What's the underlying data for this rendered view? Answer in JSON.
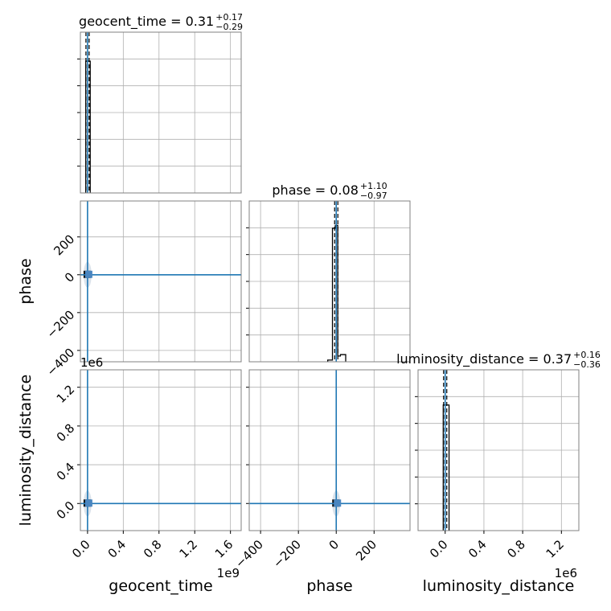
{
  "chart_data": {
    "type": "corner",
    "parameters": [
      "geocent_time",
      "phase",
      "luminosity_distance"
    ],
    "titles": {
      "geocent_time": {
        "name": "geocent_time",
        "median": "0.31",
        "plus": "+0.17",
        "minus": "−0.29"
      },
      "phase": {
        "name": "phase",
        "median": "0.08",
        "plus": "+1.10",
        "minus": "−0.97"
      },
      "luminosity_distance": {
        "name": "luminosity_distance",
        "median": "0.37",
        "plus": "+0.16",
        "minus": "−0.36"
      }
    },
    "axes": {
      "geocent_time": {
        "label": "geocent_time",
        "range": [
          -80000000.0,
          1720000000.0
        ],
        "ticks": [
          0,
          400000000.0,
          800000000.0,
          1200000000.0,
          1600000000.0
        ],
        "tick_labels": [
          "0.0",
          "0.4",
          "0.8",
          "1.2",
          "1.6"
        ],
        "offset_label": "1e9"
      },
      "phase": {
        "label": "phase",
        "range": [
          -460,
          390
        ],
        "ticks": [
          -400,
          -200,
          0,
          200
        ],
        "tick_labels": [
          "−400",
          "−200",
          "0",
          "200"
        ]
      },
      "luminosity_distance": {
        "label": "luminosity_distance",
        "range": [
          -280000.0,
          1380000.0
        ],
        "ticks": [
          0,
          400000.0,
          800000.0,
          1200000.0
        ],
        "tick_labels": [
          "0.0",
          "0.4",
          "0.8",
          "1.2"
        ],
        "y_ticks": [
          0,
          400000.0,
          800000.0,
          1200000.0
        ],
        "y_tick_labels": [
          "0.0",
          "0.4",
          "0.8",
          "1.2"
        ],
        "offset_label": "1e6"
      }
    },
    "truth": {
      "geocent_time": 0,
      "phase": 0,
      "luminosity_distance": 0
    },
    "histograms": {
      "geocent_time": {
        "edges": [
          -20000000.0,
          30000000.0
        ],
        "counts": [
          1.0
        ]
      },
      "phase": {
        "edges": [
          -45,
          -20,
          -5,
          8,
          22,
          50
        ],
        "counts": [
          0.012,
          0.93,
          0.95,
          0.04,
          0.05
        ]
      },
      "luminosity_distance": {
        "edges": [
          -20000.0,
          40000.0
        ],
        "counts": [
          1.0
        ]
      }
    },
    "hist_ymax": {
      "geocent_time": 1.22,
      "phase": 1.12,
      "luminosity_distance": 1.28
    },
    "grid": true
  }
}
